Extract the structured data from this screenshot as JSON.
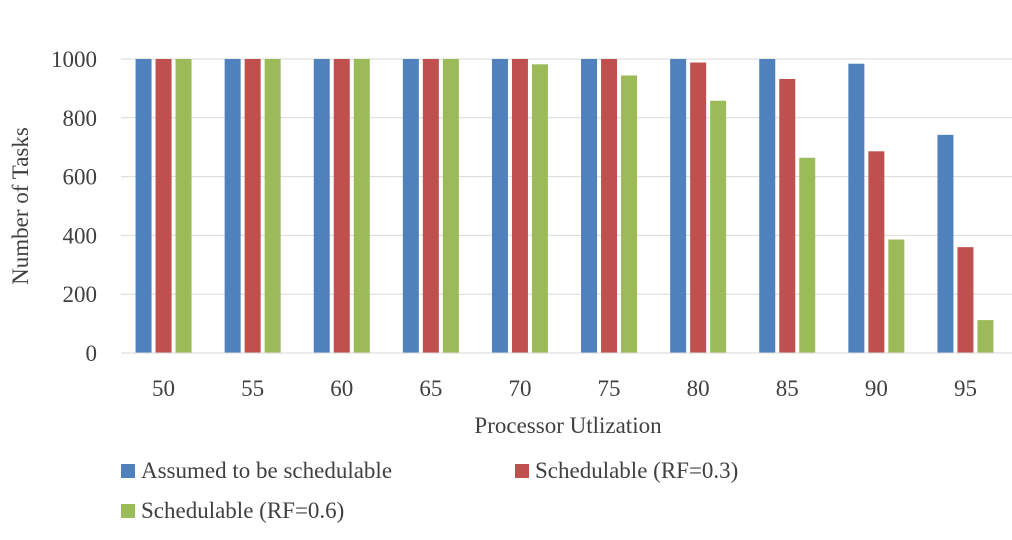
{
  "chart_data": {
    "type": "bar",
    "title": "",
    "xlabel": "Processor Utlization",
    "ylabel": "Number of Tasks",
    "categories": [
      "50",
      "55",
      "60",
      "65",
      "70",
      "75",
      "80",
      "85",
      "90",
      "95"
    ],
    "ylim": [
      0,
      1000
    ],
    "yticks": [
      "0",
      "200",
      "400",
      "600",
      "800",
      "1000"
    ],
    "grid": true,
    "legend_position": "bottom-left",
    "series": [
      {
        "name": "Assumed to be schedulable",
        "color": "#4f81bd",
        "values": [
          1000,
          1000,
          1000,
          1000,
          1000,
          1000,
          1000,
          1000,
          984,
          742
        ]
      },
      {
        "name": "Schedulable (RF=0.3)",
        "color": "#c0504d",
        "values": [
          1000,
          1000,
          1000,
          1000,
          1000,
          1000,
          988,
          932,
          686,
          360
        ]
      },
      {
        "name": "Schedulable (RF=0.6)",
        "color": "#9bbb59",
        "values": [
          1000,
          1000,
          1000,
          1000,
          982,
          944,
          858,
          664,
          386,
          112
        ]
      }
    ]
  }
}
